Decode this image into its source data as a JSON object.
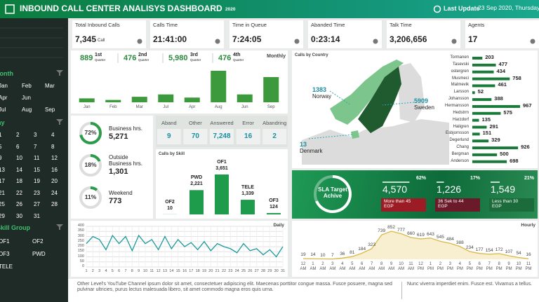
{
  "header": {
    "title": "INBOUND CALL CENTER ANALISYS DASHBOARD",
    "year": "2020",
    "update_label": "Last Update",
    "update_date": "23 Sep 2020, Thursday"
  },
  "kpis": [
    {
      "label": "Total Inbound Calls",
      "value": "7,345",
      "unit": "Call"
    },
    {
      "label": "Calls Time",
      "value": "21:41:00"
    },
    {
      "label": "Time in Queue",
      "value": "7:24:05"
    },
    {
      "label": "Abanded Time",
      "value": "0:23:14"
    },
    {
      "label": "Talk Time",
      "value": "3,206,656"
    },
    {
      "label": "Agents",
      "value": "17"
    }
  ],
  "sidebar": {
    "month_title": "Month",
    "months": [
      [
        "Jan",
        "Feb",
        "Mar"
      ],
      [
        "Apr",
        "Jun"
      ],
      [
        "Jul",
        "Aug",
        "Sep"
      ]
    ],
    "day_title": "Day",
    "days": [
      1,
      2,
      3,
      4,
      5,
      6,
      7,
      8,
      9,
      10,
      11,
      12,
      13,
      14,
      15,
      16,
      17,
      18,
      19,
      20,
      21,
      22,
      23,
      24,
      25,
      26,
      27,
      28,
      29,
      30,
      31
    ],
    "skill_title": "Skill Group",
    "skills": [
      [
        "OF1",
        "OF2"
      ],
      [
        "OF3",
        "PWD"
      ],
      [
        "TELE"
      ]
    ]
  },
  "quarters": [
    {
      "value": "889",
      "rank": "1st",
      "sub": "Quarter"
    },
    {
      "value": "476",
      "rank": "2nd",
      "sub": "Quarter"
    },
    {
      "value": "5,980",
      "rank": "3rd",
      "sub": "Quarter"
    },
    {
      "value": "476",
      "rank": "4th",
      "sub": "Quarter"
    }
  ],
  "business_hours": [
    {
      "label": "Business hrs.",
      "value": 72,
      "value_label": "72%",
      "count": "5,271"
    },
    {
      "label": "Outside Business hrs.",
      "value": 18,
      "value_label": "18%",
      "count": "1,301"
    },
    {
      "label": "Weekend",
      "value": 11,
      "value_label": "11%",
      "count": "773"
    }
  ],
  "status": {
    "categories": [
      "Aband",
      "Other",
      "Answered",
      "Error",
      "Abandring"
    ],
    "values": [
      "9",
      "70",
      "7,248",
      "16",
      "2"
    ]
  },
  "map": {
    "markers": [
      {
        "value": "1383",
        "name": "Norway"
      },
      {
        "value": "5909",
        "name": "Sweden"
      },
      {
        "value": "13",
        "name": "Denmark"
      }
    ]
  },
  "sla": {
    "title": "SLA Target Achive",
    "groups": [
      {
        "percent": 62,
        "percent_label": "62%",
        "value": "4,570",
        "label": "More than 45 EGP",
        "color": "#9b1c24"
      },
      {
        "percent": 17,
        "percent_label": "17%",
        "value": "1,226",
        "label": "36 Sek to 44 EGP",
        "color": "#6b1a2a"
      },
      {
        "percent": 21,
        "percent_label": "21%",
        "value": "1,549",
        "label": "Less than 30 EGP",
        "color": "#1c6b3a"
      }
    ]
  },
  "chart_data": [
    {
      "type": "bar",
      "title": "Monthly",
      "categories": [
        "Jan",
        "Feb",
        "Mar",
        "Jul",
        "Apr",
        "Aug",
        "Jun",
        "Sep"
      ],
      "values": [
        5,
        3,
        7,
        10,
        6,
        40,
        10,
        32
      ],
      "color": "#3c9a3c"
    },
    {
      "type": "bar",
      "title": "Calls by Skill",
      "categories": [
        "OF2",
        "PWD",
        "OF1",
        "TELE",
        "OF3"
      ],
      "values": [
        10,
        2221,
        3651,
        1339,
        124
      ],
      "value_labels": [
        "10",
        "2,221",
        "3,651",
        "1,339",
        "124"
      ],
      "color": "#1e9b4b"
    },
    {
      "type": "hbar",
      "title": "Calls by Country",
      "categories": [
        "Tormanen",
        "Tasevski",
        "ostergren",
        "Musmeci",
        "Malmevik",
        "Larsson",
        "Johansson",
        "Hermansson",
        "Hedstrm",
        "Harzdorf",
        "Haligren",
        "Esbjornsson",
        "Degerlund",
        "Chang",
        "Bergman",
        "Anderson"
      ],
      "values": [
        203,
        477,
        434,
        758,
        461,
        52,
        388,
        967,
        575,
        135,
        291,
        151,
        329,
        926,
        500,
        698
      ],
      "color": "#1a7a3a"
    },
    {
      "type": "line",
      "title": "Daily",
      "x": [
        1,
        2,
        3,
        4,
        5,
        6,
        7,
        8,
        9,
        10,
        11,
        12,
        13,
        14,
        15,
        16,
        17,
        18,
        19,
        20,
        21,
        22,
        23,
        24,
        25,
        26,
        27,
        28,
        29,
        30,
        31
      ],
      "values": [
        230,
        300,
        270,
        170,
        310,
        230,
        300,
        160,
        310,
        230,
        270,
        170,
        300,
        180,
        270,
        200,
        240,
        170,
        250,
        160,
        230,
        200,
        180,
        140,
        230,
        160,
        180,
        120,
        170,
        100,
        200
      ],
      "xlim": [
        1,
        31
      ],
      "ylim": [
        0,
        400
      ],
      "yticks": [
        0,
        50,
        100,
        150,
        200,
        250,
        300,
        350,
        400
      ],
      "grid": true,
      "color": "#1a9a9a"
    },
    {
      "type": "area",
      "title": "Hourly",
      "categories": [
        "12 AM",
        "1 AM",
        "2 AM",
        "3 AM",
        "4 AM",
        "5 AM",
        "6 AM",
        "7 AM",
        "8 AM",
        "9 AM",
        "10 AM",
        "11 AM",
        "12 PM",
        "1 PM",
        "2 PM",
        "3 PM",
        "4 PM",
        "5 PM",
        "6 PM",
        "7 PM",
        "8 PM",
        "9 PM",
        "10 PM",
        "11 PM"
      ],
      "values": [
        19,
        14,
        10,
        7,
        36,
        81,
        184,
        323,
        739,
        852,
        777,
        660,
        619,
        643,
        545,
        484,
        388,
        234,
        177,
        154,
        172,
        107,
        54,
        16
      ],
      "color": "#d9b84a"
    }
  ],
  "footer": {
    "left": "Other Level's YouTube Channel ipsum dolor sit amet, consectetuer adipiscing elit. Maecenas porttitor congue massa. Fusce posuere, magna sed pulvinar ultricies, purus lectus malesuada libero, sit amet commodo magna eros quis urna.",
    "right": "Nunc viverra imperdiet enim. Fusce est. Vivamus a tellus."
  }
}
